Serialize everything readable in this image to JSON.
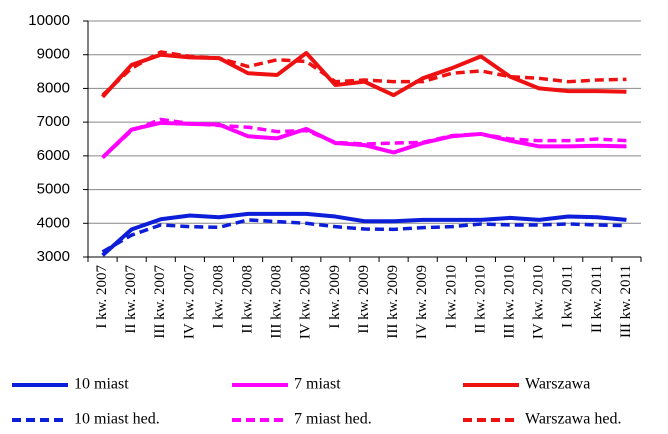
{
  "chart_data": {
    "type": "line",
    "categories": [
      "I kw. 2007",
      "II kw. 2007",
      "III kw. 2007",
      "IV kw. 2007",
      "I kw. 2008",
      "II kw. 2008",
      "III kw. 2008",
      "IV kw. 2008",
      "I kw. 2009",
      "II kw. 2009",
      "III kw. 2009",
      "IV kw. 2009",
      "I kw. 2010",
      "II kw. 2010",
      "III kw. 2010",
      "IV kw. 2010",
      "I kw. 2011",
      "II kw. 2011",
      "III kw. 2011"
    ],
    "series": [
      {
        "name": "10 miast",
        "color": "#0c1ed8",
        "line_style": "solid",
        "values": [
          3050,
          3820,
          4120,
          4230,
          4180,
          4280,
          4280,
          4280,
          4200,
          4060,
          4060,
          4100,
          4100,
          4100,
          4160,
          4100,
          4200,
          4180,
          4100
        ]
      },
      {
        "name": "7 miast",
        "color": "#ff00ff",
        "line_style": "solid",
        "values": [
          5950,
          6780,
          6980,
          6950,
          6930,
          6580,
          6520,
          6800,
          6380,
          6320,
          6100,
          6380,
          6580,
          6650,
          6450,
          6280,
          6280,
          6300,
          6280
        ]
      },
      {
        "name": "Warszawa",
        "color": "#ee1111",
        "line_style": "solid",
        "values": [
          7750,
          8700,
          9000,
          8920,
          8900,
          8450,
          8400,
          9050,
          8100,
          8200,
          7800,
          8300,
          8600,
          8950,
          8350,
          8000,
          7920,
          7920,
          7900
        ]
      },
      {
        "name": "10 miast hed.",
        "color": "#0c1ed8",
        "line_style": "dashed",
        "values": [
          3150,
          3650,
          3950,
          3900,
          3880,
          4100,
          4050,
          4000,
          3900,
          3830,
          3820,
          3870,
          3900,
          3980,
          3950,
          3950,
          3980,
          3950,
          3930
        ]
      },
      {
        "name": "7 miast hed.",
        "color": "#ff00ff",
        "line_style": "dashed",
        "values": [
          5950,
          6750,
          7080,
          6960,
          6900,
          6850,
          6720,
          6750,
          6400,
          6350,
          6380,
          6400,
          6600,
          6650,
          6500,
          6450,
          6450,
          6500,
          6450
        ]
      },
      {
        "name": "Warszawa hed.",
        "color": "#ee1111",
        "line_style": "dashed",
        "values": [
          7800,
          8600,
          9080,
          8950,
          8900,
          8650,
          8850,
          8800,
          8200,
          8250,
          8200,
          8200,
          8450,
          8520,
          8350,
          8300,
          8200,
          8250,
          8270
        ]
      }
    ],
    "ylim": [
      3000,
      10000
    ],
    "yticks": [
      3000,
      4000,
      5000,
      6000,
      7000,
      8000,
      9000,
      10000
    ],
    "grid": true,
    "legend": "bottom"
  }
}
